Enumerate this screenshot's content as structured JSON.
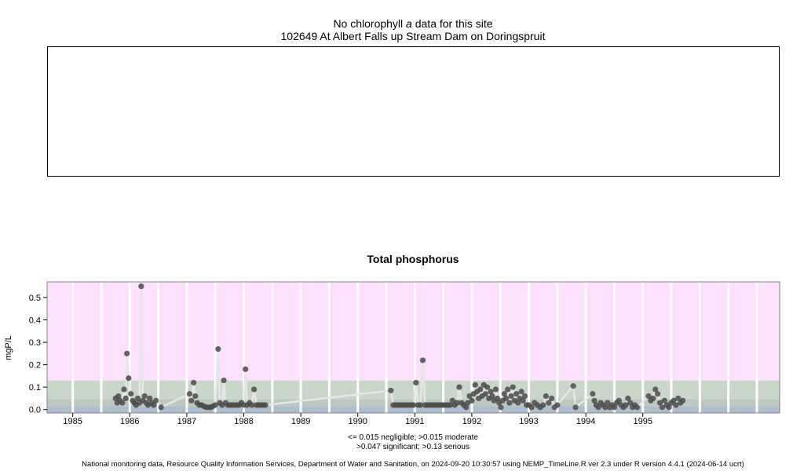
{
  "header": {
    "message_prefix": "No chlorophyll ",
    "message_italic": "a",
    "message_suffix": "  data for this site",
    "site": "102649 At Albert Falls up Stream Dam on Doringspruit"
  },
  "chart_data": [
    {
      "type": "scatter",
      "title": "No chlorophyll a  data for this site",
      "series": []
    },
    {
      "type": "scatter",
      "title": "Total phosphorus",
      "ylabel": "mgP/L",
      "xlabel": "",
      "xlim": [
        1984.55,
        1997.4
      ],
      "ylim": [
        -0.015,
        0.57
      ],
      "x_ticks": [
        1985,
        1986,
        1987,
        1988,
        1989,
        1990,
        1991,
        1992,
        1993,
        1994,
        1995
      ],
      "y_ticks": [
        0.0,
        0.1,
        0.2,
        0.3,
        0.4,
        0.5
      ],
      "y_tick_labels": [
        "0.0",
        "0.1",
        "0.2",
        "0.3",
        "0.4",
        "0.5"
      ],
      "gridlines_x": [
        1985,
        1985.5,
        1986,
        1986.5,
        1987,
        1987.5,
        1988,
        1988.5,
        1989,
        1989.5,
        1990,
        1990.5,
        1991,
        1991.5,
        1992,
        1992.5,
        1993,
        1993.5,
        1994,
        1994.5,
        1995,
        1995.5,
        1996,
        1996.5,
        1997
      ],
      "bands": [
        {
          "from": -0.015,
          "to": 0.015,
          "color": "#aebed0",
          "label": "negligible"
        },
        {
          "from": 0.015,
          "to": 0.047,
          "color": "#bcc8c2",
          "label": "moderate"
        },
        {
          "from": 0.047,
          "to": 0.13,
          "color": "#cbd6cb",
          "label": "significant"
        },
        {
          "from": 0.13,
          "to": 0.57,
          "color": "#fde0fd",
          "label": "serious"
        }
      ],
      "point_color": "#4a4a4a",
      "line_color": "#e6e6e6",
      "points": [
        [
          1985.75,
          0.05
        ],
        [
          1985.78,
          0.03
        ],
        [
          1985.8,
          0.06
        ],
        [
          1985.83,
          0.04
        ],
        [
          1985.87,
          0.03
        ],
        [
          1985.9,
          0.09
        ],
        [
          1985.93,
          0.05
        ],
        [
          1985.95,
          0.25
        ],
        [
          1985.98,
          0.14
        ],
        [
          1986.02,
          0.07
        ],
        [
          1986.05,
          0.04
        ],
        [
          1986.08,
          0.03
        ],
        [
          1986.11,
          0.02
        ],
        [
          1986.14,
          0.05
        ],
        [
          1986.17,
          0.03
        ],
        [
          1986.2,
          0.55
        ],
        [
          1986.23,
          0.04
        ],
        [
          1986.26,
          0.06
        ],
        [
          1986.29,
          0.03
        ],
        [
          1986.32,
          0.02
        ],
        [
          1986.35,
          0.05
        ],
        [
          1986.38,
          0.03
        ],
        [
          1986.42,
          0.02
        ],
        [
          1986.46,
          0.04
        ],
        [
          1986.55,
          0.01
        ],
        [
          1987.05,
          0.07
        ],
        [
          1987.08,
          0.04
        ],
        [
          1987.12,
          0.12
        ],
        [
          1987.15,
          0.06
        ],
        [
          1987.18,
          0.03
        ],
        [
          1987.22,
          0.02
        ],
        [
          1987.26,
          0.02
        ],
        [
          1987.3,
          0.015
        ],
        [
          1987.34,
          0.01
        ],
        [
          1987.38,
          0.01
        ],
        [
          1987.42,
          0.01
        ],
        [
          1987.46,
          0.015
        ],
        [
          1987.5,
          0.02
        ],
        [
          1987.55,
          0.27
        ],
        [
          1987.58,
          0.03
        ],
        [
          1987.62,
          0.02
        ],
        [
          1987.65,
          0.13
        ],
        [
          1987.68,
          0.03
        ],
        [
          1987.72,
          0.02
        ],
        [
          1987.76,
          0.02
        ],
        [
          1987.8,
          0.02
        ],
        [
          1987.84,
          0.02
        ],
        [
          1987.88,
          0.02
        ],
        [
          1987.92,
          0.02
        ],
        [
          1987.96,
          0.03
        ],
        [
          1988.0,
          0.02
        ],
        [
          1988.03,
          0.18
        ],
        [
          1988.06,
          0.02
        ],
        [
          1988.1,
          0.03
        ],
        [
          1988.14,
          0.02
        ],
        [
          1988.18,
          0.09
        ],
        [
          1988.22,
          0.02
        ],
        [
          1988.26,
          0.02
        ],
        [
          1988.3,
          0.02
        ],
        [
          1988.34,
          0.02
        ],
        [
          1988.38,
          0.02
        ],
        [
          1990.58,
          0.085
        ],
        [
          1990.62,
          0.02
        ],
        [
          1990.66,
          0.02
        ],
        [
          1990.7,
          0.02
        ],
        [
          1990.74,
          0.02
        ],
        [
          1990.78,
          0.02
        ],
        [
          1990.82,
          0.02
        ],
        [
          1990.86,
          0.02
        ],
        [
          1990.9,
          0.02
        ],
        [
          1990.94,
          0.02
        ],
        [
          1990.98,
          0.02
        ],
        [
          1991.02,
          0.12
        ],
        [
          1991.06,
          0.02
        ],
        [
          1991.1,
          0.02
        ],
        [
          1991.14,
          0.22
        ],
        [
          1991.18,
          0.02
        ],
        [
          1991.22,
          0.02
        ],
        [
          1991.26,
          0.02
        ],
        [
          1991.3,
          0.02
        ],
        [
          1991.34,
          0.02
        ],
        [
          1991.38,
          0.02
        ],
        [
          1991.42,
          0.02
        ],
        [
          1991.46,
          0.02
        ],
        [
          1991.5,
          0.02
        ],
        [
          1991.54,
          0.02
        ],
        [
          1991.58,
          0.02
        ],
        [
          1991.62,
          0.02
        ],
        [
          1991.66,
          0.04
        ],
        [
          1991.7,
          0.02
        ],
        [
          1991.74,
          0.03
        ],
        [
          1991.78,
          0.1
        ],
        [
          1991.82,
          0.03
        ],
        [
          1991.86,
          0.02
        ],
        [
          1991.9,
          0.01
        ],
        [
          1991.93,
          0.03
        ],
        [
          1991.96,
          0.06
        ],
        [
          1992.0,
          0.04
        ],
        [
          1992.03,
          0.07
        ],
        [
          1992.06,
          0.11
        ],
        [
          1992.09,
          0.08
        ],
        [
          1992.12,
          0.05
        ],
        [
          1992.15,
          0.09
        ],
        [
          1992.18,
          0.06
        ],
        [
          1992.21,
          0.11
        ],
        [
          1992.24,
          0.07
        ],
        [
          1992.27,
          0.1
        ],
        [
          1992.3,
          0.05
        ],
        [
          1992.33,
          0.08
        ],
        [
          1992.36,
          0.06
        ],
        [
          1992.39,
          0.04
        ],
        [
          1992.42,
          0.09
        ],
        [
          1992.45,
          0.05
        ],
        [
          1992.48,
          0.03
        ],
        [
          1992.51,
          0.01
        ],
        [
          1992.54,
          0.04
        ],
        [
          1992.57,
          0.07
        ],
        [
          1992.6,
          0.05
        ],
        [
          1992.63,
          0.09
        ],
        [
          1992.66,
          0.03
        ],
        [
          1992.69,
          0.06
        ],
        [
          1992.72,
          0.1
        ],
        [
          1992.75,
          0.04
        ],
        [
          1992.78,
          0.07
        ],
        [
          1992.81,
          0.03
        ],
        [
          1992.84,
          0.05
        ],
        [
          1992.87,
          0.08
        ],
        [
          1992.9,
          0.04
        ],
        [
          1992.93,
          0.06
        ],
        [
          1992.96,
          0.02
        ],
        [
          1993.0,
          0.02
        ],
        [
          1993.05,
          0.01
        ],
        [
          1993.1,
          0.03
        ],
        [
          1993.15,
          0.02
        ],
        [
          1993.2,
          0.01
        ],
        [
          1993.25,
          0.02
        ],
        [
          1993.3,
          0.06
        ],
        [
          1993.35,
          0.03
        ],
        [
          1993.4,
          0.05
        ],
        [
          1993.45,
          0.01
        ],
        [
          1993.5,
          0.02
        ],
        [
          1993.78,
          0.105
        ],
        [
          1993.82,
          0.01
        ],
        [
          1994.12,
          0.07
        ],
        [
          1994.15,
          0.04
        ],
        [
          1994.18,
          0.02
        ],
        [
          1994.22,
          0.01
        ],
        [
          1994.26,
          0.03
        ],
        [
          1994.3,
          0.02
        ],
        [
          1994.34,
          0.01
        ],
        [
          1994.38,
          0.03
        ],
        [
          1994.42,
          0.01
        ],
        [
          1994.46,
          0.02
        ],
        [
          1994.5,
          0.01
        ],
        [
          1994.54,
          0.03
        ],
        [
          1994.58,
          0.04
        ],
        [
          1994.62,
          0.02
        ],
        [
          1994.66,
          0.01
        ],
        [
          1994.7,
          0.02
        ],
        [
          1994.74,
          0.05
        ],
        [
          1994.78,
          0.03
        ],
        [
          1994.82,
          0.01
        ],
        [
          1994.86,
          0.02
        ],
        [
          1994.9,
          0.01
        ],
        [
          1995.1,
          0.06
        ],
        [
          1995.14,
          0.04
        ],
        [
          1995.18,
          0.05
        ],
        [
          1995.22,
          0.09
        ],
        [
          1995.26,
          0.07
        ],
        [
          1995.3,
          0.03
        ],
        [
          1995.34,
          0.01
        ],
        [
          1995.38,
          0.04
        ],
        [
          1995.42,
          0.02
        ],
        [
          1995.46,
          0.01
        ],
        [
          1995.5,
          0.03
        ],
        [
          1995.54,
          0.04
        ],
        [
          1995.58,
          0.02
        ],
        [
          1995.62,
          0.05
        ],
        [
          1995.66,
          0.03
        ],
        [
          1995.7,
          0.04
        ]
      ]
    }
  ],
  "legend": {
    "line1": "<= 0.015 negligible; >0.015 moderate",
    "line2": ">0.047 significant; >0.13 serious"
  },
  "footer": "National monitoring data, Resource Quality Information Services, Department of Water and Sanitation, on 2024-09-20 10:30:57 using NEMP_TimeLine.R ver 2.3 under R version 4.4.1 (2024-06-14 ucrt)"
}
